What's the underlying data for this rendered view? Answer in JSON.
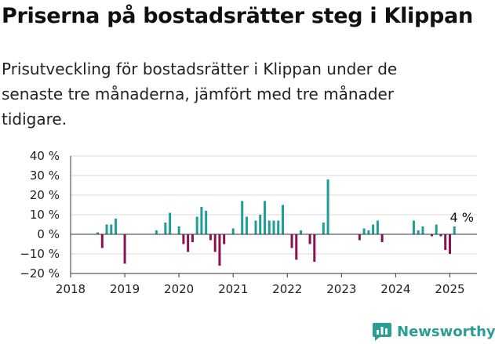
{
  "header": {
    "title": "Priserna på bostadsrätter steg i Klippan",
    "subtitle": "Prisutveckling för bostadsrätter i Klippan under de senaste tre månaderna, jämfört med tre månader tidigare."
  },
  "branding": {
    "logo_text": "Newsworthy",
    "logo_color": "#2a9d94",
    "logo_icon": "bar-chart-icon"
  },
  "colors": {
    "positive": "#1f9e96",
    "negative": "#8a1150",
    "grid": "#d9d9d9",
    "axis": "#333333",
    "text": "#222222"
  },
  "chart_data": {
    "type": "bar",
    "title": "Priserna på bostadsrätter steg i Klippan",
    "xlabel": "",
    "ylabel": "",
    "ylim": [
      -20,
      40
    ],
    "xlim": [
      "2018-01",
      "2025-07"
    ],
    "y_ticks": [
      {
        "value": 40,
        "label": "40 %"
      },
      {
        "value": 30,
        "label": "30 %"
      },
      {
        "value": 20,
        "label": "20 %"
      },
      {
        "value": 10,
        "label": "10 %"
      },
      {
        "value": 0,
        "label": "0 %"
      },
      {
        "value": -10,
        "label": "−10 %"
      },
      {
        "value": -20,
        "label": "−20 %"
      }
    ],
    "x_ticks": [
      "2018",
      "2019",
      "2020",
      "2021",
      "2022",
      "2023",
      "2024",
      "2025"
    ],
    "grid": true,
    "annotation": {
      "label": "4 %",
      "date": "2025-01"
    },
    "series": [
      {
        "x": [
          "2018-07",
          "2018-08",
          "2018-09",
          "2018-10",
          "2018-11",
          "2019-01",
          "2019-08",
          "2019-10",
          "2019-11",
          "2020-01",
          "2020-02",
          "2020-03",
          "2020-04",
          "2020-05",
          "2020-06",
          "2020-07",
          "2020-08",
          "2020-09",
          "2020-10",
          "2020-11",
          "2021-01",
          "2021-03",
          "2021-04",
          "2021-06",
          "2021-07",
          "2021-08",
          "2021-09",
          "2021-10",
          "2021-11",
          "2021-12",
          "2022-02",
          "2022-03",
          "2022-04",
          "2022-06",
          "2022-07",
          "2022-09",
          "2022-10",
          "2023-05",
          "2023-06",
          "2023-07",
          "2023-08",
          "2023-09",
          "2023-10",
          "2024-05",
          "2024-06",
          "2024-07",
          "2024-09",
          "2024-10",
          "2024-11",
          "2024-12",
          "2025-01"
        ],
        "values": [
          1,
          -7,
          5,
          5,
          8,
          -15,
          2,
          6,
          11,
          4,
          -5,
          -9,
          -4,
          9,
          14,
          12,
          -3,
          -9,
          -16,
          -5,
          3,
          17,
          9,
          7,
          10,
          17,
          7,
          7,
          7,
          15,
          -7,
          -13,
          2,
          -5,
          -14,
          6,
          28,
          -3,
          3,
          2,
          5,
          7,
          -4,
          7,
          2,
          4,
          -1,
          5,
          -1,
          -8,
          -10
        ]
      },
      {
        "x": [
          "2025-02"
        ],
        "values": [
          4
        ]
      }
    ]
  }
}
